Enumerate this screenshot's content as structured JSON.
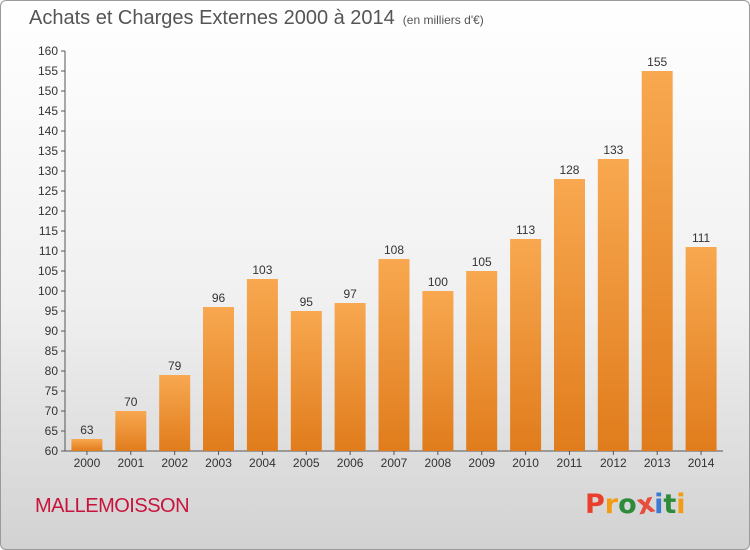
{
  "header": {
    "title": "Achats et Charges Externes 2000 à 2014",
    "subtitle": "(en milliers d'€)"
  },
  "footer": {
    "commune": "MALLEMOISSON",
    "logo": [
      "P",
      "r",
      "o",
      "x",
      "i",
      "t",
      "i"
    ]
  },
  "colors": {
    "bar_top": "#f8a850",
    "bar_bottom": "#e07c1c",
    "title": "#555555",
    "commune": "#c8143c",
    "logo": [
      "#e8402c",
      "#f39c12",
      "#2e8b3a",
      "#e74c3c",
      "#3a7bd5",
      "#2e8b3a",
      "#f39c12"
    ]
  },
  "chart_data": {
    "type": "bar",
    "title": "Achats et Charges Externes 2000 à 2014",
    "subtitle": "(en milliers d'€)",
    "categories": [
      "2000",
      "2001",
      "2002",
      "2003",
      "2004",
      "2005",
      "2006",
      "2007",
      "2008",
      "2009",
      "2010",
      "2011",
      "2012",
      "2013",
      "2014"
    ],
    "values": [
      63,
      70,
      79,
      96,
      103,
      95,
      97,
      108,
      100,
      105,
      113,
      128,
      133,
      155,
      111
    ],
    "xlabel": "",
    "ylabel": "",
    "ylim": [
      60,
      160
    ],
    "yticks": [
      60,
      65,
      70,
      75,
      80,
      85,
      90,
      95,
      100,
      105,
      110,
      115,
      120,
      125,
      130,
      135,
      140,
      145,
      150,
      155,
      160
    ],
    "grid": false,
    "legend": "none"
  }
}
